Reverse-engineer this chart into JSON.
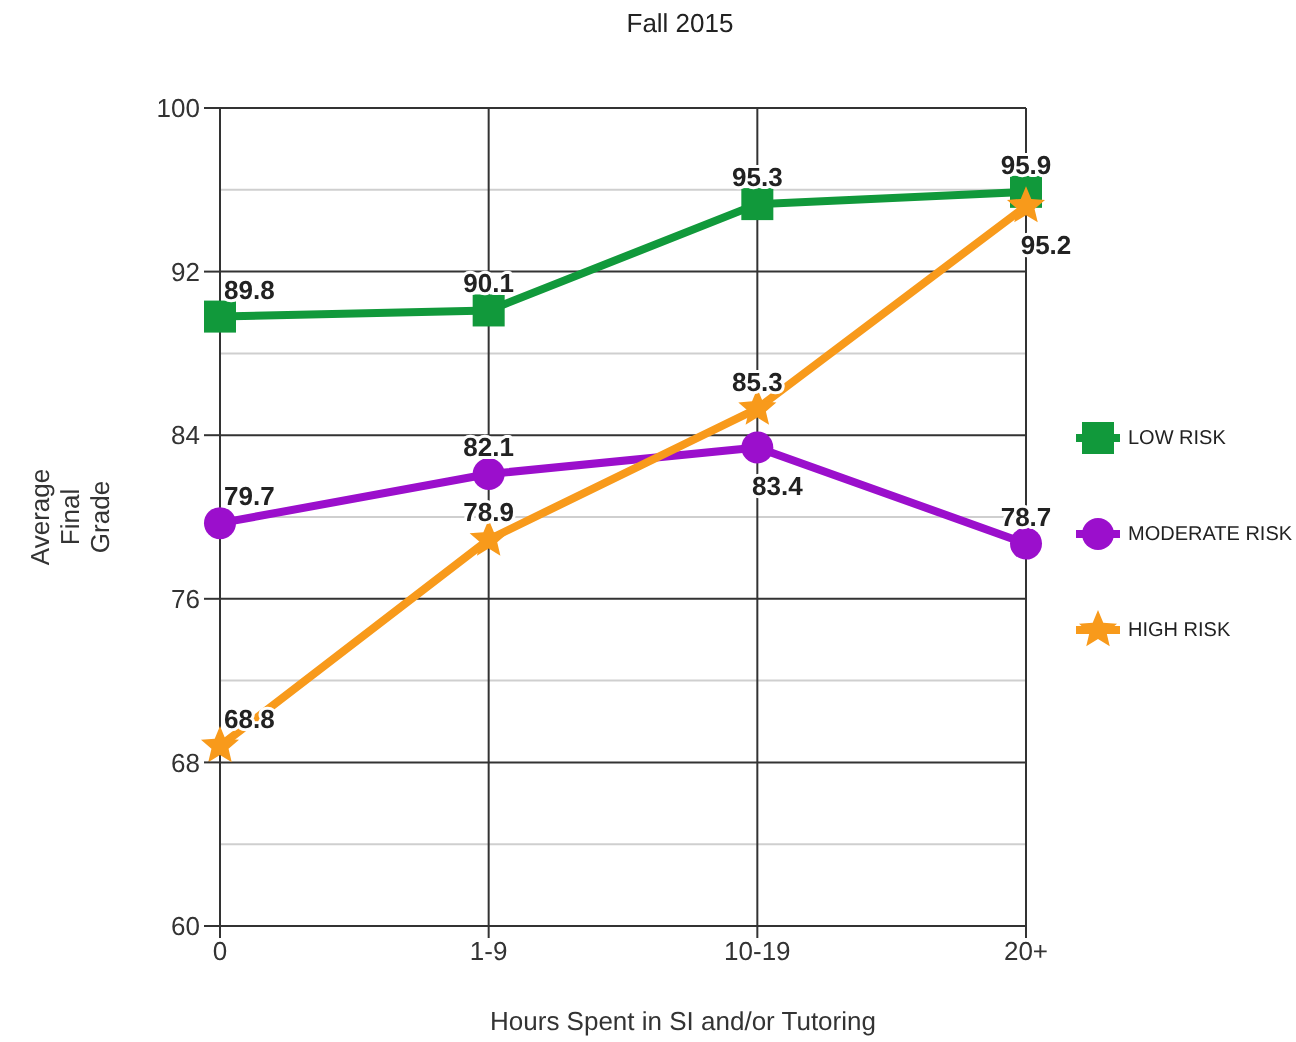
{
  "chart_data": {
    "type": "line",
    "title": "Fall 2015",
    "xlabel": "Hours Spent in SI and/or Tutoring",
    "ylabel": "Average Final Grade",
    "categories": [
      "0",
      "1-9",
      "10-19",
      "20+"
    ],
    "series": [
      {
        "name": "LOW RISK",
        "color": "#11993b",
        "marker": "square",
        "values": [
          89.8,
          90.1,
          95.3,
          95.9
        ]
      },
      {
        "name": "MODERATE RISK",
        "color": "#9b0fcc",
        "marker": "circle",
        "values": [
          79.7,
          82.1,
          83.4,
          78.7
        ]
      },
      {
        "name": "HIGH RISK",
        "color": "#f89a1b",
        "marker": "star",
        "values": [
          68.8,
          78.9,
          85.3,
          95.2
        ]
      }
    ],
    "ylim": [
      60,
      100
    ],
    "yticks": [
      60,
      {
        "value": 64,
        "label": null
      },
      68,
      {
        "value": 72,
        "label": null
      },
      76,
      {
        "value": 80,
        "label": null
      },
      84,
      {
        "value": 88,
        "label": null
      },
      92,
      {
        "value": 96,
        "label": null
      },
      100
    ],
    "grid": true,
    "legend": "right",
    "data_labels": true
  }
}
